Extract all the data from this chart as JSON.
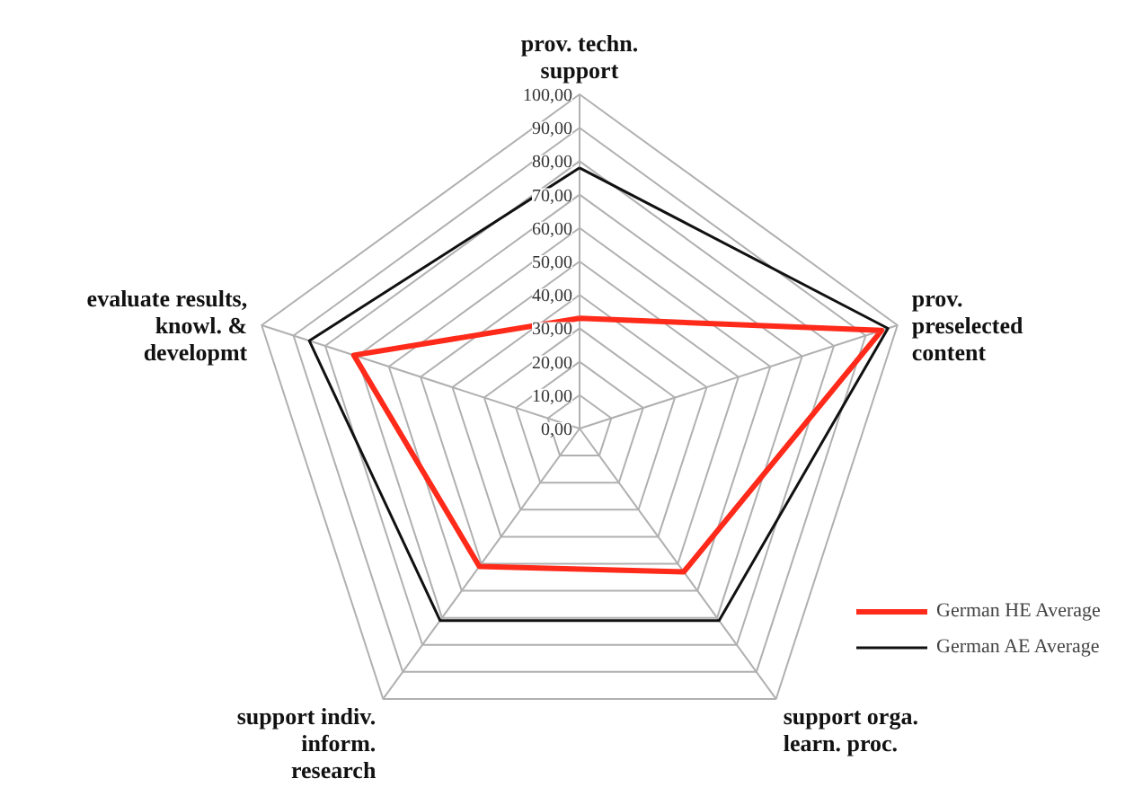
{
  "chart_data": {
    "type": "radar",
    "categories": [
      "prov. techn.\nsupport",
      "prov.\npreselected\ncontent",
      "support orga.\nlearn. proc.",
      "support indiv.\ninform.\nresearch",
      "evaluate results,\nknowl. &\ndevelopmt"
    ],
    "series": [
      {
        "name": "German HE Average",
        "color": "#ff2a1a",
        "values": [
          33,
          95,
          53,
          51,
          71
        ]
      },
      {
        "name": "German AE Average",
        "color": "#111111",
        "values": [
          78,
          97,
          71,
          71,
          85
        ]
      }
    ],
    "ylim": [
      0,
      100
    ],
    "yticks": [
      {
        "value": 0,
        "label": "0,00"
      },
      {
        "value": 10,
        "label": "10,00"
      },
      {
        "value": 20,
        "label": "20,00"
      },
      {
        "value": 30,
        "label": "30,00"
      },
      {
        "value": 40,
        "label": "40,00"
      },
      {
        "value": 50,
        "label": "50,00"
      },
      {
        "value": 60,
        "label": "60,00"
      },
      {
        "value": 70,
        "label": "70,00"
      },
      {
        "value": 80,
        "label": "80,00"
      },
      {
        "value": 90,
        "label": "90,00"
      },
      {
        "value": 100,
        "label": "100,00"
      }
    ],
    "grid": true,
    "legend": "bottom right"
  }
}
